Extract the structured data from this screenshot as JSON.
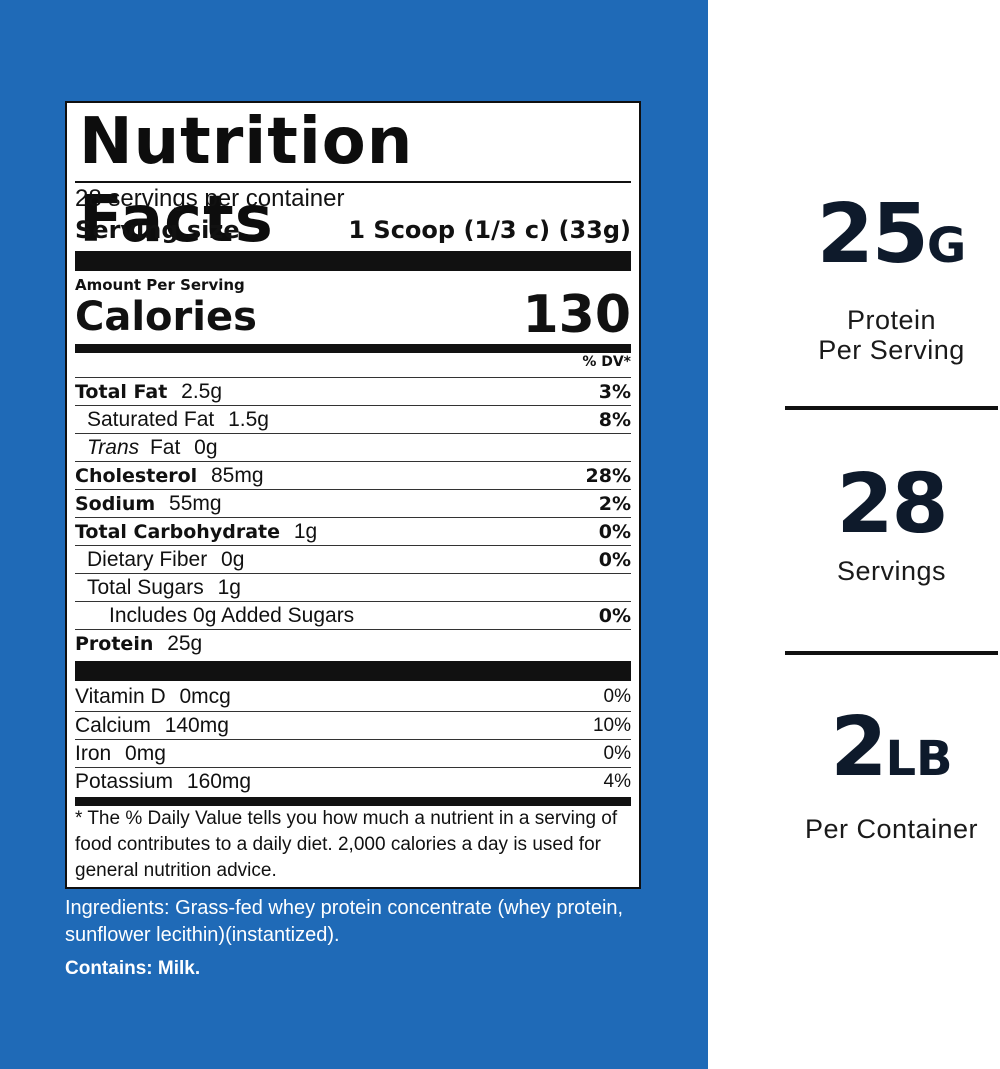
{
  "label": {
    "title": "Nutrition Facts",
    "servings_per_container": "28 servings per container",
    "serving_size_label": "Serving size",
    "serving_size_value": "1 Scoop (1/3 c) (33g)",
    "amount_per_serving": "Amount Per Serving",
    "calories_label": "Calories",
    "calories_value": "130",
    "dv_header": "% DV*",
    "nutrients": [
      {
        "name": "Total Fat",
        "amount": "2.5g",
        "dv": "3%"
      },
      {
        "name": "Saturated Fat",
        "amount": "1.5g",
        "dv": "8%"
      },
      {
        "name_italic": "Trans",
        "name": "Fat",
        "amount": "0g",
        "dv": ""
      },
      {
        "name": "Cholesterol",
        "amount": "85mg",
        "dv": "28%"
      },
      {
        "name": "Sodium",
        "amount": "55mg",
        "dv": "2%"
      },
      {
        "name": "Total Carbohydrate",
        "amount": "1g",
        "dv": "0%"
      },
      {
        "name": "Dietary Fiber",
        "amount": "0g",
        "dv": "0%"
      },
      {
        "name": "Total Sugars",
        "amount": "1g",
        "dv": ""
      },
      {
        "name": "Includes 0g Added Sugars",
        "amount": "",
        "dv": "0%"
      },
      {
        "name": "Protein",
        "amount": "25g",
        "dv": ""
      }
    ],
    "vitamins": [
      {
        "name": "Vitamin D",
        "amount": "0mcg",
        "dv": "0%"
      },
      {
        "name": "Calcium",
        "amount": "140mg",
        "dv": "10%"
      },
      {
        "name": "Iron",
        "amount": "0mg",
        "dv": "0%"
      },
      {
        "name": "Potassium",
        "amount": "160mg",
        "dv": "4%"
      }
    ],
    "footnote": "* The % Daily Value tells you how much a nutrient in a serving of food contributes to a daily diet. 2,000 calories a day is used for general nutrition advice."
  },
  "ingredients": "Ingredients: Grass-fed whey protein concentrate (whey protein, sunflower lecithin)(instantized).",
  "contains": "Contains: Milk.",
  "stats": [
    {
      "number": "25",
      "unit": "G",
      "caption_line1": "Protein",
      "caption_line2": "Per Serving"
    },
    {
      "number": "28",
      "unit": "",
      "caption_line1": "Servings",
      "caption_line2": ""
    },
    {
      "number": "2",
      "unit": "LB",
      "caption_line1": "Per Container",
      "caption_line2": ""
    }
  ],
  "colors": {
    "background_left": "#1f6ab7",
    "background_right": "#ffffff",
    "text_dark": "#0e1a2b"
  }
}
